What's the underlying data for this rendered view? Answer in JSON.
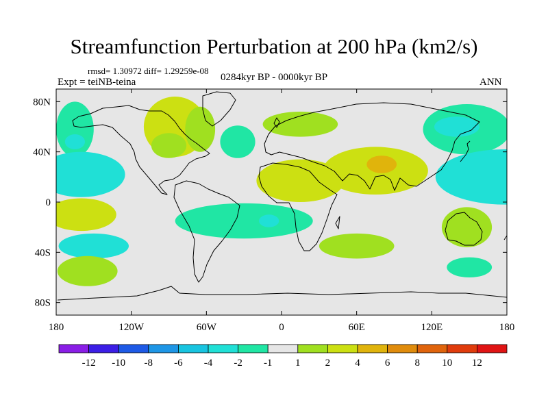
{
  "title": "Streamfunction Perturbation at 200 hPa (km2/s)",
  "stats": "rmsd= 1.30972 diff= 1.29259e-08",
  "experiment": "Expt = teiNB-teina",
  "period": "0284kyr BP - 0000kyr BP",
  "season": "ANN",
  "chart_data": {
    "type": "heatmap",
    "projection": "cylindrical equidistant",
    "title": "Streamfunction Perturbation at 200 hPa (km2/s)",
    "xlim": [
      -180,
      180
    ],
    "ylim": [
      -90,
      90
    ],
    "x_ticks": [
      {
        "value": -180,
        "label": "180"
      },
      {
        "value": -120,
        "label": "120W"
      },
      {
        "value": -60,
        "label": "60W"
      },
      {
        "value": 0,
        "label": "0"
      },
      {
        "value": 60,
        "label": "60E"
      },
      {
        "value": 120,
        "label": "120E"
      },
      {
        "value": 180,
        "label": "180"
      }
    ],
    "y_ticks": [
      {
        "value": 80,
        "label": "80N"
      },
      {
        "value": 40,
        "label": "40N"
      },
      {
        "value": 0,
        "label": "0"
      },
      {
        "value": -40,
        "label": "40S"
      },
      {
        "value": -80,
        "label": "80S"
      }
    ],
    "colorbar": {
      "levels": [
        -12,
        -10,
        -8,
        -6,
        -4,
        -2,
        -1,
        1,
        2,
        4,
        6,
        8,
        10,
        12
      ],
      "labels": [
        "-12",
        "-10",
        "-8",
        "-6",
        "-4",
        "-2",
        "-1",
        "1",
        "2",
        "4",
        "6",
        "8",
        "10",
        "12"
      ],
      "colors": [
        "#8a1ee6",
        "#3c1ee6",
        "#1e5ae6",
        "#1e96e6",
        "#18c4e0",
        "#20e0d6",
        "#20e6a4",
        "#e6e6e6",
        "#a0e020",
        "#cce012",
        "#e0b40c",
        "#e08c0c",
        "#e0640c",
        "#e03c0c",
        "#e01414"
      ]
    },
    "anomalies": [
      {
        "lon": -85,
        "lat": 60,
        "value": 3.0,
        "rlon": 25,
        "rlat": 24
      },
      {
        "lon": -65,
        "lat": 58,
        "value": 1.5,
        "rlon": 12,
        "rlat": 18
      },
      {
        "lon": -90,
        "lat": 45,
        "value": 1.5,
        "rlon": 14,
        "rlat": 10
      },
      {
        "lon": -35,
        "lat": 48,
        "value": -1.5,
        "rlon": 14,
        "rlat": 13
      },
      {
        "lon": 15,
        "lat": 62,
        "value": 1.5,
        "rlon": 30,
        "rlat": 10
      },
      {
        "lon": -165,
        "lat": 58,
        "value": -1.5,
        "rlon": 15,
        "rlat": 22
      },
      {
        "lon": -165,
        "lat": 48,
        "value": -2.5,
        "rlon": 8,
        "rlat": 6
      },
      {
        "lon": -160,
        "lat": 22,
        "value": -2.5,
        "rlon": 35,
        "rlat": 18
      },
      {
        "lon": -180,
        "lat": 22,
        "value": -4.0,
        "rlon": 10,
        "rlat": 8
      },
      {
        "lon": 15,
        "lat": 17,
        "value": 2.0,
        "rlon": 35,
        "rlat": 17
      },
      {
        "lon": 75,
        "lat": 25,
        "value": 3.0,
        "rlon": 42,
        "rlat": 19
      },
      {
        "lon": 80,
        "lat": 30,
        "value": 5.0,
        "rlon": 12,
        "rlat": 7
      },
      {
        "lon": 148,
        "lat": 58,
        "value": -1.5,
        "rlon": 35,
        "rlat": 20
      },
      {
        "lon": 140,
        "lat": 60,
        "value": -2.5,
        "rlon": 18,
        "rlat": 8
      },
      {
        "lon": 178,
        "lat": 20,
        "value": -2.5,
        "rlon": 55,
        "rlat": 22
      },
      {
        "lon": -160,
        "lat": -10,
        "value": 2.5,
        "rlon": 28,
        "rlat": 13
      },
      {
        "lon": -150,
        "lat": -35,
        "value": -2.5,
        "rlon": 28,
        "rlat": 10
      },
      {
        "lon": -155,
        "lat": -55,
        "value": 1.5,
        "rlon": 24,
        "rlat": 12
      },
      {
        "lon": -30,
        "lat": -15,
        "value": -1.5,
        "rlon": 55,
        "rlat": 14
      },
      {
        "lon": -10,
        "lat": -15,
        "value": -2.5,
        "rlon": 8,
        "rlat": 5
      },
      {
        "lon": 60,
        "lat": -35,
        "value": 1.5,
        "rlon": 30,
        "rlat": 10
      },
      {
        "lon": 148,
        "lat": -20,
        "value": 1.5,
        "rlon": 20,
        "rlat": 16
      },
      {
        "lon": 150,
        "lat": -52,
        "value": -1.5,
        "rlon": 18,
        "rlat": 8
      }
    ]
  }
}
